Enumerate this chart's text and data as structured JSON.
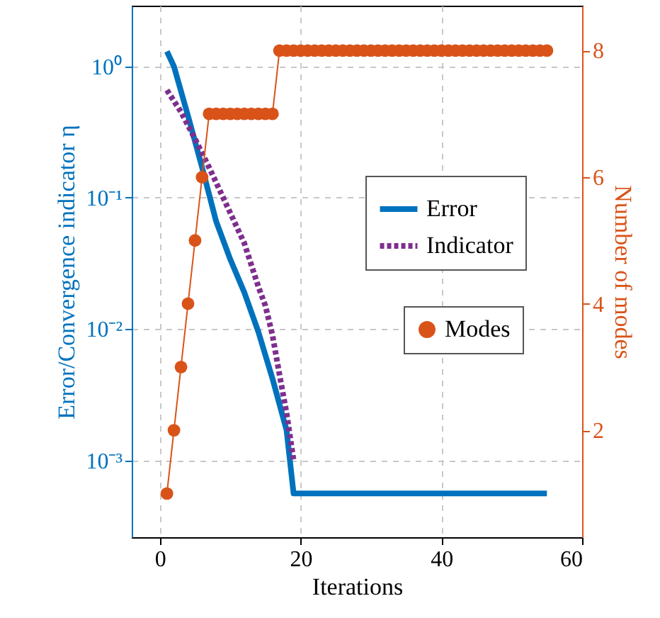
{
  "chart_data": {
    "type": "line",
    "xlabel": "Iterations",
    "ylabel": "Error/Convergence indicator η",
    "y2label": "Number of modes",
    "xlim": [
      -4,
      60
    ],
    "xticks": [
      0,
      20,
      40,
      60
    ],
    "ylim": [
      0.00026,
      2.9
    ],
    "yticks": [
      {
        "value": 1,
        "label": "10⁰"
      },
      {
        "value": 0.1,
        "label": "10⁻¹"
      },
      {
        "value": 0.01,
        "label": "10⁻²"
      },
      {
        "value": 0.001,
        "label": "10⁻³"
      }
    ],
    "y2lim": [
      0.31,
      8.71
    ],
    "y2ticks": [
      2,
      4,
      6,
      8
    ],
    "log": "y",
    "grid": true,
    "legend": "right",
    "series": [
      {
        "name": "Error",
        "color": "#0072bd",
        "line_style": "solid",
        "marker": "none",
        "x": [
          1,
          2,
          4,
          6,
          8,
          10,
          12,
          14,
          16,
          18,
          19,
          55
        ],
        "values": [
          1.3,
          1.0,
          0.42,
          0.17,
          0.066,
          0.034,
          0.019,
          0.0095,
          0.0042,
          0.0017,
          0.00056,
          0.00056
        ]
      },
      {
        "name": "Indicator",
        "color": "#7e2f8e",
        "line_style": "dotted",
        "marker": "none",
        "x": [
          1,
          3,
          5,
          7,
          9,
          12,
          14,
          15,
          16,
          17,
          18,
          19
        ],
        "values": [
          0.66,
          0.45,
          0.28,
          0.17,
          0.1,
          0.045,
          0.021,
          0.015,
          0.009,
          0.0045,
          0.0023,
          0.001
        ]
      },
      {
        "name": "Modes",
        "color": "#d95319",
        "axis": "y2",
        "line_style": "solid",
        "marker": "circle",
        "x": [
          1,
          2,
          3,
          4,
          5,
          6,
          7,
          8,
          9,
          10,
          11,
          12,
          13,
          14,
          15,
          16,
          17,
          18,
          19,
          20,
          21,
          22,
          23,
          24,
          25,
          26,
          27,
          28,
          29,
          30,
          31,
          32,
          33,
          34,
          35,
          36,
          37,
          38,
          39,
          40,
          41,
          42,
          43,
          44,
          45,
          46,
          47,
          48,
          49,
          50,
          51,
          52,
          53,
          54,
          55
        ],
        "values": [
          1,
          2,
          3,
          4,
          5,
          6,
          7,
          7,
          7,
          7,
          7,
          7,
          7,
          7,
          7,
          7,
          8,
          8,
          8,
          8,
          8,
          8,
          8,
          8,
          8,
          8,
          8,
          8,
          8,
          8,
          8,
          8,
          8,
          8,
          8,
          8,
          8,
          8,
          8,
          8,
          8,
          8,
          8,
          8,
          8,
          8,
          8,
          8,
          8,
          8,
          8,
          8,
          8,
          8,
          8
        ]
      }
    ]
  }
}
